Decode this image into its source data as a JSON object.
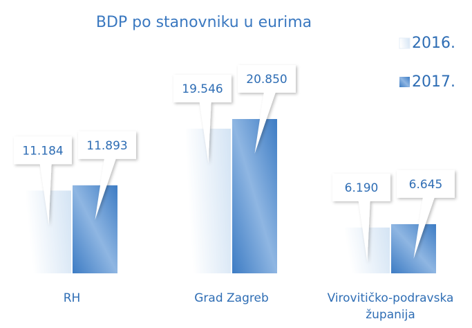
{
  "chart_data": {
    "type": "bar",
    "title": "BDP po stanovniku u eurima",
    "categories": [
      "RH",
      "Grad Zagreb",
      "Virovitičko-podravska županija"
    ],
    "series": [
      {
        "name": "2016.",
        "color": "#d4e4f4",
        "values": [
          11184,
          19546,
          6190
        ],
        "value_labels": [
          "11.184",
          "19.546",
          "6.190"
        ]
      },
      {
        "name": "2017.",
        "color": "#3d7cc4",
        "values": [
          11893,
          20850,
          6645
        ],
        "value_labels": [
          "11.893",
          "20.850",
          "6.645"
        ]
      }
    ],
    "legend": "top-right"
  }
}
